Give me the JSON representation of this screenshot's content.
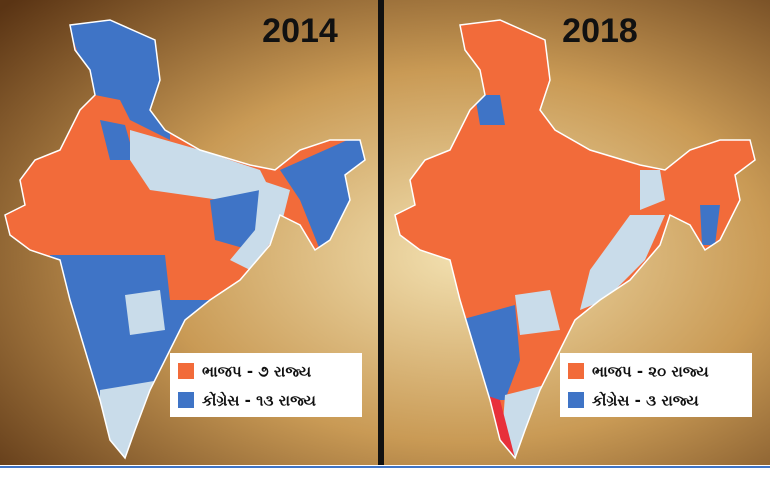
{
  "maps": [
    {
      "year": "2014",
      "legend": [
        {
          "label": "ભાજપ - ૭ રાજ્ય",
          "color": "#f26b3a"
        },
        {
          "label": "કોંગ્રેસ - ૧૩ રાજ્ય",
          "color": "#3f74c6"
        }
      ]
    },
    {
      "year": "2018",
      "legend": [
        {
          "label": "ભાજપ - ૨૦ રાજ્ય",
          "color": "#f26b3a"
        },
        {
          "label": "કોંગ્રેસ - ૩ રાજ્ય",
          "color": "#3f74c6"
        }
      ]
    }
  ]
}
